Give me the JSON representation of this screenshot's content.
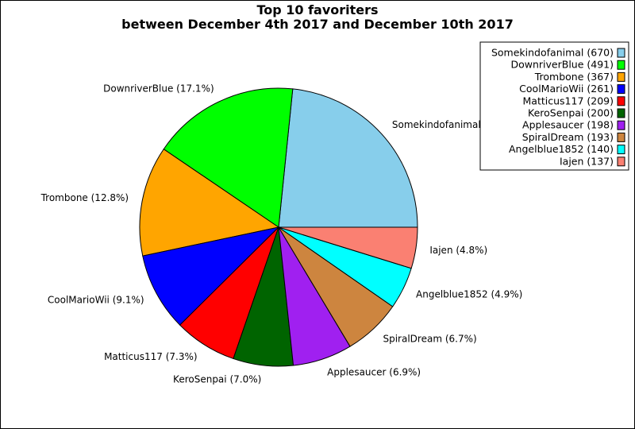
{
  "chart_data": {
    "type": "pie",
    "title_lines": [
      "Top 10 favoriters",
      "between December 4th 2017 and December 10th 2017"
    ],
    "legend_position": "top-right",
    "slices": [
      {
        "name": "Somekindofanimal",
        "value": 670,
        "percent_label": "",
        "legend_label": "Somekindofanimal (670)",
        "color": "#87ceeb"
      },
      {
        "name": "DownriverBlue",
        "value": 491,
        "percent_label": "DownriverBlue (17.1%)",
        "legend_label": "DownriverBlue (491)",
        "color": "#00ff00"
      },
      {
        "name": "Trombone",
        "value": 367,
        "percent_label": "Trombone (12.8%)",
        "legend_label": "Trombone (367)",
        "color": "#ffa500"
      },
      {
        "name": "CoolMarioWii",
        "value": 261,
        "percent_label": "CoolMarioWii (9.1%)",
        "legend_label": "CoolMarioWii (261)",
        "color": "#0000ff"
      },
      {
        "name": "Matticus117",
        "value": 209,
        "percent_label": "Matticus117 (7.3%)",
        "legend_label": "Matticus117 (209)",
        "color": "#ff0000"
      },
      {
        "name": "KeroSenpai",
        "value": 200,
        "percent_label": "KeroSenpai (7.0%)",
        "legend_label": "KeroSenpai (200)",
        "color": "#006400"
      },
      {
        "name": "Applesaucer",
        "value": 198,
        "percent_label": "Applesaucer (6.9%)",
        "legend_label": "Applesaucer (198)",
        "color": "#a020f0"
      },
      {
        "name": "SpiralDream",
        "value": 193,
        "percent_label": "SpiralDream (6.7%)",
        "legend_label": "SpiralDream (193)",
        "color": "#cd853f"
      },
      {
        "name": "Angelblue1852",
        "value": 140,
        "percent_label": "Angelblue1852 (4.9%)",
        "legend_label": "Angelblue1852 (140)",
        "color": "#00ffff"
      },
      {
        "name": "Iajen",
        "value": 137,
        "percent_label": "Iajen (4.8%)",
        "legend_label": "Iajen (137)",
        "color": "#fa8072"
      }
    ]
  }
}
